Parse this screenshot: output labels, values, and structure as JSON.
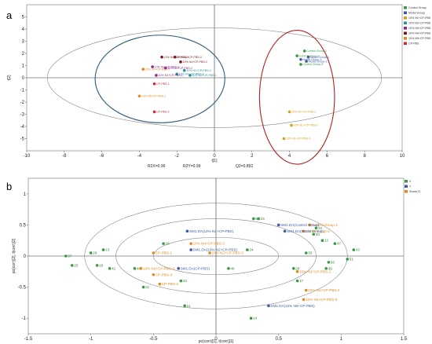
{
  "panels": {
    "a": "a",
    "b": "b"
  },
  "chart_data": [
    {
      "type": "scatter",
      "xlabel": "t[1]",
      "ylabel": "t[2]",
      "xlim": [
        -10,
        10
      ],
      "ylim": [
        -6,
        6
      ],
      "xticks": [
        -10,
        -8,
        -6,
        -4,
        -2,
        0,
        2,
        4,
        6,
        8,
        10
      ],
      "yticks": [
        -5,
        -4,
        -3,
        -2,
        -1,
        0,
        1,
        2,
        3,
        4,
        5
      ],
      "stats": {
        "r2x": "R2X=0.99",
        "r2y": "R2Y=0.99",
        "q2": "Q2=0.892"
      },
      "legend": [
        {
          "name": "Control Group",
          "color": "#3a9b45"
        },
        {
          "name": "Model Group",
          "color": "#3c5aa6"
        },
        {
          "name": "10% N1+CP-PBS",
          "color": "#d4a21c"
        },
        {
          "name": "10% N2+CP-PBS",
          "color": "#2f8f9a"
        },
        {
          "name": "10% N3+CP-PBS",
          "color": "#8b2a8a"
        },
        {
          "name": "10% N4+CP-PBS",
          "color": "#7a1a1a"
        },
        {
          "name": "10% N5+CP-PBS",
          "color": "#e08a1e"
        },
        {
          "name": "CP-PBS",
          "color": "#d0263a"
        }
      ],
      "points": [
        {
          "x": 4.8,
          "y": 2.2,
          "label": "Control Group-1",
          "color": "#3a9b45"
        },
        {
          "x": 4.4,
          "y": 1.8,
          "label": "Control Group-2",
          "color": "#3a9b45"
        },
        {
          "x": 4.6,
          "y": 1.5,
          "label": "Model Group-3",
          "color": "#3c5aa6"
        },
        {
          "x": 5.0,
          "y": 1.7,
          "label": "Model Group-1",
          "color": "#3c5aa6"
        },
        {
          "x": 4.9,
          "y": 1.35,
          "label": "Model Group-2",
          "color": "#3c5aa6"
        },
        {
          "x": 4.6,
          "y": 1.1,
          "label": "Control Group-3",
          "color": "#3a9b45"
        },
        {
          "x": 4.0,
          "y": -2.8,
          "label": "10% N1+CP-PBS-1",
          "color": "#d4a21c"
        },
        {
          "x": 4.1,
          "y": -3.9,
          "label": "10% N1+CP-PBS-2",
          "color": "#d4a21c"
        },
        {
          "x": 3.7,
          "y": -5.0,
          "label": "10% N1+CP-PBS-3",
          "color": "#d4a21c"
        },
        {
          "x": -2.1,
          "y": 1.7,
          "label": "10% N4+CP-PBS-3",
          "color": "#7a1a1a"
        },
        {
          "x": -2.8,
          "y": 1.7,
          "label": "10% N4+CP-PBS-1",
          "color": "#7a1a1a"
        },
        {
          "x": -1.8,
          "y": 1.3,
          "label": "10% N4+CP-PBS-2",
          "color": "#7a1a1a"
        },
        {
          "x": -3.3,
          "y": 0.9,
          "label": "10% N3+CP-PBS-3",
          "color": "#8b2a8a"
        },
        {
          "x": -3.8,
          "y": 0.7,
          "label": "10% N5+CP-PBS-2",
          "color": "#e08a1e"
        },
        {
          "x": -2.6,
          "y": 0.8,
          "label": "10% N3+CP-PBS-2",
          "color": "#8b2a8a"
        },
        {
          "x": -1.6,
          "y": 0.6,
          "label": "10% N2+CP-PBS-2",
          "color": "#2f8f9a"
        },
        {
          "x": -1.3,
          "y": 0.2,
          "label": "10% N2+CP-PBS-1",
          "color": "#2f8f9a"
        },
        {
          "x": -2.0,
          "y": 0.3,
          "label": "10% N2+CP-PBS-3",
          "color": "#2f8f9a"
        },
        {
          "x": -3.1,
          "y": 0.2,
          "label": "10% N3+CP-PBS-1",
          "color": "#8b2a8a"
        },
        {
          "x": -3.2,
          "y": -0.5,
          "label": "CP-PBS-1",
          "color": "#d0263a"
        },
        {
          "x": -4.0,
          "y": -1.5,
          "label": "10% N5+CP-PBS-1",
          "color": "#e08a1e"
        },
        {
          "x": -3.2,
          "y": -2.8,
          "label": "CP-PBS-2",
          "color": "#d0263a"
        }
      ]
    },
    {
      "type": "scatter",
      "xlabel": "pc(corr)[1], t(corr)[1]",
      "ylabel": "pc(corr)[2], t(corr)[2]",
      "xlim": [
        -1.5,
        1.5
      ],
      "ylim": [
        -1.25,
        1.25
      ],
      "xticks": [
        -1.5,
        -1,
        -0.5,
        0,
        0.5,
        1,
        1.5
      ],
      "yticks": [
        -1,
        -0.5,
        0,
        0.5,
        1
      ],
      "legend": [
        {
          "name": "X",
          "color": "#3a9b45"
        },
        {
          "name": "Y",
          "color": "#3c5aa6"
        },
        {
          "name": "Score(Y)",
          "color": "#e08a1e"
        }
      ],
      "variables": [
        {
          "x": 0.3,
          "y": 0.6,
          "label": "56",
          "color": "#3a9b45"
        },
        {
          "x": 0.34,
          "y": 0.6,
          "label": "34",
          "color": "#3a9b45"
        },
        {
          "x": 0.25,
          "y": 0.1,
          "label": "24",
          "color": "#3a9b45"
        },
        {
          "x": 0.1,
          "y": -0.2,
          "label": "46",
          "color": "#3a9b45"
        },
        {
          "x": -0.28,
          "y": -0.4,
          "label": "42",
          "color": "#3a9b45"
        },
        {
          "x": -0.58,
          "y": -0.5,
          "label": "21",
          "color": "#3a9b45"
        },
        {
          "x": -0.25,
          "y": -0.8,
          "label": "11",
          "color": "#3a9b45"
        },
        {
          "x": -0.42,
          "y": 0.2,
          "label": "16",
          "color": "#3a9b45"
        },
        {
          "x": -0.65,
          "y": -0.2,
          "label": "40",
          "color": "#3a9b45"
        },
        {
          "x": 0.62,
          "y": -0.2,
          "label": "28",
          "color": "#3a9b45"
        },
        {
          "x": 0.78,
          "y": 0.35,
          "label": "30",
          "color": "#3a9b45"
        },
        {
          "x": 0.8,
          "y": 0.45,
          "label": "22",
          "color": "#3a9b45"
        },
        {
          "x": 0.72,
          "y": 0.05,
          "label": "33",
          "color": "#3a9b45"
        },
        {
          "x": 0.65,
          "y": -0.4,
          "label": "17",
          "color": "#3a9b45"
        },
        {
          "x": 0.28,
          "y": -1.0,
          "label": "14",
          "color": "#3a9b45"
        },
        {
          "x": -1.2,
          "y": 0.0,
          "label": "37",
          "color": "#3a9b45"
        },
        {
          "x": -1.15,
          "y": -0.15,
          "label": "25",
          "color": "#3a9b45"
        },
        {
          "x": -1.0,
          "y": 0.05,
          "label": "26",
          "color": "#3a9b45"
        },
        {
          "x": -0.95,
          "y": -0.15,
          "label": "18",
          "color": "#3a9b45"
        },
        {
          "x": -0.9,
          "y": 0.1,
          "label": "13",
          "color": "#3a9b45"
        },
        {
          "x": -0.85,
          "y": -0.2,
          "label": "41",
          "color": "#3a9b45"
        },
        {
          "x": 0.95,
          "y": 0.2,
          "label": "47",
          "color": "#3a9b45"
        },
        {
          "x": 1.05,
          "y": -0.05,
          "label": "51",
          "color": "#3a9b45"
        },
        {
          "x": 1.1,
          "y": 0.1,
          "label": "43",
          "color": "#3a9b45"
        },
        {
          "x": 0.9,
          "y": -0.1,
          "label": "50",
          "color": "#3a9b45"
        },
        {
          "x": 0.85,
          "y": 0.25,
          "label": "12",
          "color": "#3a9b45"
        },
        {
          "x": 0.88,
          "y": -0.2,
          "label": "39",
          "color": "#3a9b45"
        }
      ],
      "classes": [
        {
          "x": -0.23,
          "y": 0.4,
          "label": "SM1.DA(10% N1+CP-PBS)",
          "color": "#3c5aa6"
        },
        {
          "x": -0.2,
          "y": 0.1,
          "label": "SM1.DA(10% N2+CP-PBS)",
          "color": "#3c5aa6"
        },
        {
          "x": -0.3,
          "y": -0.2,
          "label": "SM1.DA(CP-PBS)",
          "color": "#3c5aa6"
        },
        {
          "x": 0.5,
          "y": 0.5,
          "label": "SM1.DA(Control Group)",
          "color": "#3c5aa6"
        },
        {
          "x": 0.55,
          "y": 0.4,
          "label": "SM1.DA(Model Group)",
          "color": "#3c5aa6"
        },
        {
          "x": 0.42,
          "y": -0.8,
          "label": "SM1.DA(10% N5+CP-PBS)",
          "color": "#3c5aa6"
        }
      ],
      "scores": [
        {
          "x": -0.6,
          "y": -0.2,
          "label": "10% N3+CP-PBS-3",
          "color": "#e08a1e"
        },
        {
          "x": -0.5,
          "y": -0.3,
          "label": "CP-PBS-3",
          "color": "#e08a1e"
        },
        {
          "x": -0.45,
          "y": -0.45,
          "label": "CP-PBS-2",
          "color": "#e08a1e"
        },
        {
          "x": -0.5,
          "y": 0.05,
          "label": "CP-PBS-1",
          "color": "#e08a1e"
        },
        {
          "x": 0.72,
          "y": -0.55,
          "label": "10% N1+CP-PBS-2",
          "color": "#e08a1e"
        },
        {
          "x": 0.65,
          "y": -0.25,
          "label": "10% N1+CP-PBS-1",
          "color": "#e08a1e"
        },
        {
          "x": 0.7,
          "y": -0.7,
          "label": "10% N1+CP-PBS-3",
          "color": "#e08a1e"
        },
        {
          "x": 0.75,
          "y": 0.5,
          "label": "Control Group-1",
          "color": "#e08a1e"
        },
        {
          "x": 0.7,
          "y": 0.4,
          "label": "Model Group-2",
          "color": "#e08a1e"
        },
        {
          "x": -0.2,
          "y": 0.2,
          "label": "10% N4+CP-PBS-3",
          "color": "#e08a1e"
        },
        {
          "x": -0.05,
          "y": 0.05,
          "label": "10% N2+CP-PBS-3",
          "color": "#e08a1e"
        }
      ]
    }
  ]
}
